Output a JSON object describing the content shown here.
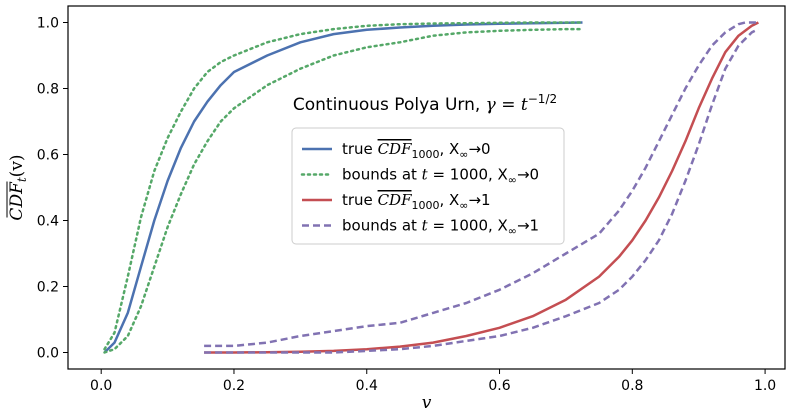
{
  "chart_data": {
    "type": "line",
    "title": "Continuous Polya Urn, γ = t^−1/2",
    "title_parts": {
      "main": "Continuous Polya Urn, ",
      "gamma": "γ",
      "eq": " = ",
      "t": "t",
      "exp": "−1/2"
    },
    "xlabel": "v",
    "ylabel": "CDF_t(v)",
    "ylabel_parts": {
      "main": "CDF",
      "sub": "t",
      "rest": "(v)"
    },
    "xlim": [
      -0.05,
      1.03
    ],
    "ylim": [
      -0.05,
      1.05
    ],
    "xticks": [
      0.0,
      0.2,
      0.4,
      0.6,
      0.8,
      1.0
    ],
    "xtick_labels": [
      "0.0",
      "0.2",
      "0.4",
      "0.6",
      "0.8",
      "1.0"
    ],
    "yticks": [
      0.0,
      0.2,
      0.4,
      0.6,
      0.8,
      1.0
    ],
    "ytick_labels": [
      "0.0",
      "0.2",
      "0.4",
      "0.6",
      "0.8",
      "1.0"
    ],
    "legend": [
      {
        "parts": [
          "true ",
          "CDF",
          "1000",
          ", X",
          "∞",
          "→0"
        ],
        "color": "#4c72b0",
        "style": "solid"
      },
      {
        "parts": [
          "bounds at ",
          "t",
          " = 1000, X",
          "∞",
          "→0"
        ],
        "color": "#55a868",
        "style": "dotted"
      },
      {
        "parts": [
          "true ",
          "CDF",
          "1000",
          ", X",
          "∞",
          "→1"
        ],
        "color": "#c44e52",
        "style": "solid"
      },
      {
        "parts": [
          "bounds at ",
          "t",
          " = 1000, X",
          "∞",
          "→1"
        ],
        "color": "#8172b2",
        "style": "dashed"
      }
    ],
    "series": [
      {
        "name": "true CDF_1000, X∞→0",
        "color": "#4c72b0",
        "style": "solid",
        "x": [
          0.005,
          0.02,
          0.04,
          0.06,
          0.08,
          0.1,
          0.12,
          0.14,
          0.16,
          0.18,
          0.2,
          0.25,
          0.3,
          0.35,
          0.4,
          0.45,
          0.5,
          0.55,
          0.6,
          0.65,
          0.7,
          0.725
        ],
        "y": [
          0.0,
          0.03,
          0.12,
          0.26,
          0.4,
          0.52,
          0.62,
          0.7,
          0.76,
          0.81,
          0.85,
          0.9,
          0.94,
          0.965,
          0.978,
          0.985,
          0.99,
          0.994,
          0.996,
          0.998,
          0.999,
          1.0
        ]
      },
      {
        "name": "upper bound t=1000, X∞→0",
        "color": "#55a868",
        "style": "dotted",
        "x": [
          0.005,
          0.02,
          0.04,
          0.06,
          0.08,
          0.1,
          0.12,
          0.14,
          0.16,
          0.18,
          0.2,
          0.25,
          0.3,
          0.35,
          0.4,
          0.45,
          0.5,
          0.55,
          0.6,
          0.65,
          0.7,
          0.725
        ],
        "y": [
          0.01,
          0.06,
          0.23,
          0.41,
          0.55,
          0.65,
          0.73,
          0.8,
          0.85,
          0.88,
          0.9,
          0.94,
          0.965,
          0.98,
          0.99,
          0.995,
          0.997,
          0.998,
          0.999,
          1.0,
          1.0,
          1.0
        ]
      },
      {
        "name": "lower bound t=1000, X∞→0",
        "color": "#55a868",
        "style": "dotted",
        "x": [
          0.005,
          0.02,
          0.04,
          0.06,
          0.08,
          0.1,
          0.12,
          0.14,
          0.16,
          0.18,
          0.2,
          0.25,
          0.3,
          0.35,
          0.4,
          0.45,
          0.5,
          0.55,
          0.6,
          0.65,
          0.7,
          0.725
        ],
        "y": [
          0.0,
          0.01,
          0.05,
          0.14,
          0.26,
          0.38,
          0.48,
          0.57,
          0.64,
          0.7,
          0.74,
          0.81,
          0.86,
          0.9,
          0.925,
          0.94,
          0.96,
          0.97,
          0.975,
          0.978,
          0.98,
          0.98
        ]
      },
      {
        "name": "true CDF_1000, X∞→1",
        "color": "#c44e52",
        "style": "solid",
        "x": [
          0.155,
          0.2,
          0.25,
          0.3,
          0.35,
          0.4,
          0.45,
          0.5,
          0.55,
          0.6,
          0.65,
          0.7,
          0.75,
          0.78,
          0.8,
          0.82,
          0.84,
          0.86,
          0.88,
          0.9,
          0.92,
          0.94,
          0.96,
          0.98,
          0.99
        ],
        "y": [
          0.0,
          0.0,
          0.001,
          0.002,
          0.005,
          0.01,
          0.018,
          0.03,
          0.05,
          0.075,
          0.11,
          0.16,
          0.23,
          0.29,
          0.34,
          0.4,
          0.47,
          0.55,
          0.64,
          0.74,
          0.83,
          0.91,
          0.96,
          0.99,
          1.0
        ]
      },
      {
        "name": "upper bound t=1000, X∞→1",
        "color": "#8172b2",
        "style": "dashed",
        "x": [
          0.155,
          0.2,
          0.25,
          0.3,
          0.35,
          0.4,
          0.45,
          0.5,
          0.55,
          0.6,
          0.65,
          0.7,
          0.75,
          0.78,
          0.8,
          0.82,
          0.84,
          0.86,
          0.88,
          0.9,
          0.92,
          0.94,
          0.96,
          0.97,
          0.99
        ],
        "y": [
          0.02,
          0.02,
          0.03,
          0.05,
          0.065,
          0.08,
          0.09,
          0.12,
          0.15,
          0.19,
          0.24,
          0.3,
          0.36,
          0.43,
          0.49,
          0.56,
          0.64,
          0.72,
          0.8,
          0.87,
          0.93,
          0.97,
          0.995,
          1.0,
          1.0
        ]
      },
      {
        "name": "lower bound t=1000, X∞→1",
        "color": "#8172b2",
        "style": "dashed",
        "x": [
          0.155,
          0.2,
          0.25,
          0.3,
          0.35,
          0.4,
          0.45,
          0.5,
          0.55,
          0.6,
          0.65,
          0.7,
          0.75,
          0.78,
          0.8,
          0.82,
          0.84,
          0.86,
          0.88,
          0.9,
          0.92,
          0.94,
          0.96,
          0.98,
          0.99
        ],
        "y": [
          0.0,
          0.0,
          0.0,
          0.0,
          0.0,
          0.005,
          0.01,
          0.02,
          0.035,
          0.05,
          0.075,
          0.11,
          0.15,
          0.19,
          0.23,
          0.28,
          0.34,
          0.42,
          0.52,
          0.63,
          0.75,
          0.86,
          0.93,
          0.97,
          0.98
        ]
      }
    ]
  }
}
